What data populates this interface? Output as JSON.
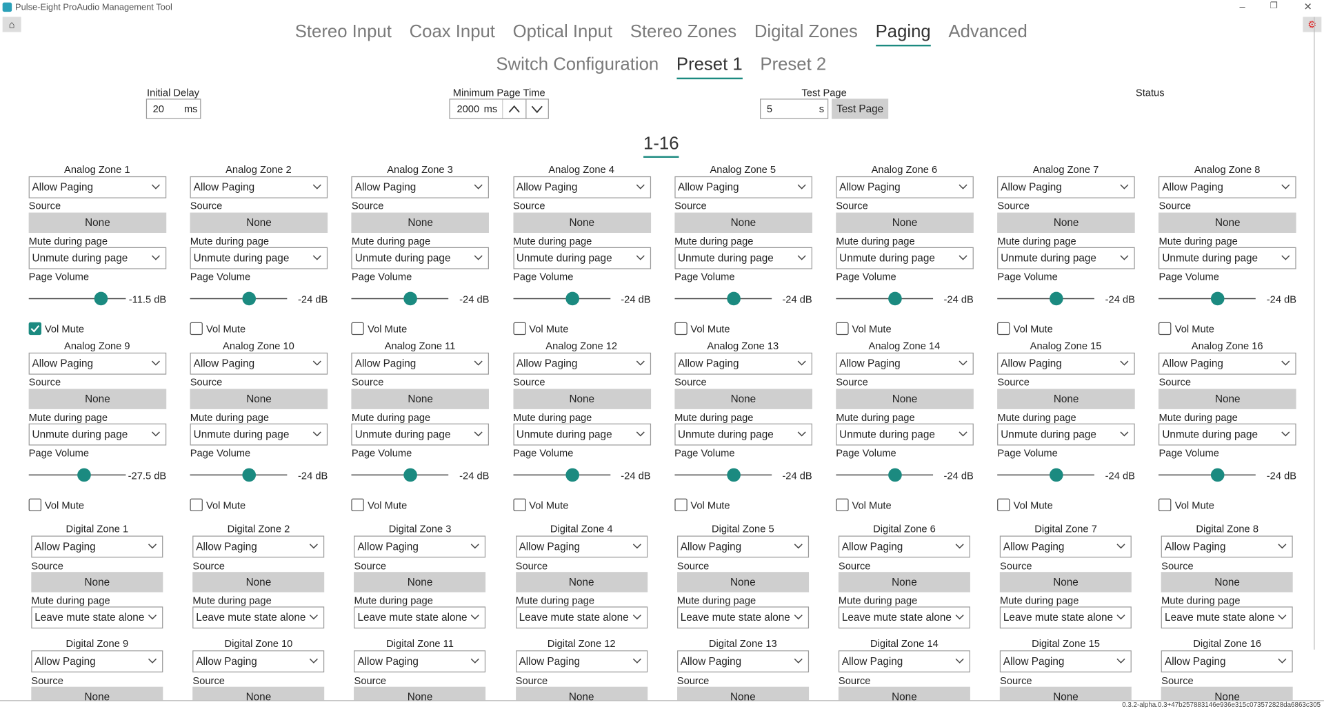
{
  "window": {
    "title": "Pulse-Eight ProAudio Management Tool"
  },
  "tabs": [
    "Stereo Input",
    "Coax Input",
    "Optical Input",
    "Stereo Zones",
    "Digital Zones",
    "Paging",
    "Advanced"
  ],
  "active_tab": 5,
  "subtabs": [
    "Switch Configuration",
    "Preset 1",
    "Preset 2"
  ],
  "active_subtab": 1,
  "settings": {
    "initial_delay": {
      "label": "Initial Delay",
      "value": "20",
      "unit": "ms"
    },
    "minimum_page_time": {
      "label": "Minimum Page Time",
      "value": "2000",
      "unit": "ms"
    },
    "test_page": {
      "label": "Test Page",
      "value": "5",
      "unit": "s",
      "button": "Test Page"
    },
    "status": {
      "label": "Status"
    }
  },
  "section": "1-16",
  "zone_labels": {
    "source": "Source",
    "mute": "Mute during page",
    "volume": "Page Volume",
    "vol_mute": "Vol Mute"
  },
  "volume_range": [
    -80,
    12
  ],
  "analog_zones": [
    {
      "name": "Analog Zone 1",
      "paging": "Allow Paging",
      "source": "None",
      "mute": "Unmute during page",
      "volume": -11.5,
      "volume_label": "-11.5 dB",
      "vol_mute": true
    },
    {
      "name": "Analog Zone 2",
      "paging": "Allow Paging",
      "source": "None",
      "mute": "Unmute during page",
      "volume": -24,
      "volume_label": "-24 dB",
      "vol_mute": false
    },
    {
      "name": "Analog Zone 3",
      "paging": "Allow Paging",
      "source": "None",
      "mute": "Unmute during page",
      "volume": -24,
      "volume_label": "-24 dB",
      "vol_mute": false
    },
    {
      "name": "Analog Zone 4",
      "paging": "Allow Paging",
      "source": "None",
      "mute": "Unmute during page",
      "volume": -24,
      "volume_label": "-24 dB",
      "vol_mute": false
    },
    {
      "name": "Analog Zone 5",
      "paging": "Allow Paging",
      "source": "None",
      "mute": "Unmute during page",
      "volume": -24,
      "volume_label": "-24 dB",
      "vol_mute": false
    },
    {
      "name": "Analog Zone 6",
      "paging": "Allow Paging",
      "source": "None",
      "mute": "Unmute during page",
      "volume": -24,
      "volume_label": "-24 dB",
      "vol_mute": false
    },
    {
      "name": "Analog Zone 7",
      "paging": "Allow Paging",
      "source": "None",
      "mute": "Unmute during page",
      "volume": -24,
      "volume_label": "-24 dB",
      "vol_mute": false
    },
    {
      "name": "Analog Zone 8",
      "paging": "Allow Paging",
      "source": "None",
      "mute": "Unmute during page",
      "volume": -24,
      "volume_label": "-24 dB",
      "vol_mute": false
    },
    {
      "name": "Analog Zone 9",
      "paging": "Allow Paging",
      "source": "None",
      "mute": "Unmute during page",
      "volume": -27.5,
      "volume_label": "-27.5 dB",
      "vol_mute": false
    },
    {
      "name": "Analog Zone 10",
      "paging": "Allow Paging",
      "source": "None",
      "mute": "Unmute during page",
      "volume": -24,
      "volume_label": "-24 dB",
      "vol_mute": false
    },
    {
      "name": "Analog Zone 11",
      "paging": "Allow Paging",
      "source": "None",
      "mute": "Unmute during page",
      "volume": -24,
      "volume_label": "-24 dB",
      "vol_mute": false
    },
    {
      "name": "Analog Zone 12",
      "paging": "Allow Paging",
      "source": "None",
      "mute": "Unmute during page",
      "volume": -24,
      "volume_label": "-24 dB",
      "vol_mute": false
    },
    {
      "name": "Analog Zone 13",
      "paging": "Allow Paging",
      "source": "None",
      "mute": "Unmute during page",
      "volume": -24,
      "volume_label": "-24 dB",
      "vol_mute": false
    },
    {
      "name": "Analog Zone 14",
      "paging": "Allow Paging",
      "source": "None",
      "mute": "Unmute during page",
      "volume": -24,
      "volume_label": "-24 dB",
      "vol_mute": false
    },
    {
      "name": "Analog Zone 15",
      "paging": "Allow Paging",
      "source": "None",
      "mute": "Unmute during page",
      "volume": -24,
      "volume_label": "-24 dB",
      "vol_mute": false
    },
    {
      "name": "Analog Zone 16",
      "paging": "Allow Paging",
      "source": "None",
      "mute": "Unmute during page",
      "volume": -24,
      "volume_label": "-24 dB",
      "vol_mute": false
    }
  ],
  "digital_zones": [
    {
      "name": "Digital Zone 1",
      "paging": "Allow Paging",
      "source": "None",
      "mute": "Leave mute state alone"
    },
    {
      "name": "Digital Zone 2",
      "paging": "Allow Paging",
      "source": "None",
      "mute": "Leave mute state alone"
    },
    {
      "name": "Digital Zone 3",
      "paging": "Allow Paging",
      "source": "None",
      "mute": "Leave mute state alone"
    },
    {
      "name": "Digital Zone 4",
      "paging": "Allow Paging",
      "source": "None",
      "mute": "Leave mute state alone"
    },
    {
      "name": "Digital Zone 5",
      "paging": "Allow Paging",
      "source": "None",
      "mute": "Leave mute state alone"
    },
    {
      "name": "Digital Zone 6",
      "paging": "Allow Paging",
      "source": "None",
      "mute": "Leave mute state alone"
    },
    {
      "name": "Digital Zone 7",
      "paging": "Allow Paging",
      "source": "None",
      "mute": "Leave mute state alone"
    },
    {
      "name": "Digital Zone 8",
      "paging": "Allow Paging",
      "source": "None",
      "mute": "Leave mute state alone"
    },
    {
      "name": "Digital Zone 9",
      "paging": "Allow Paging",
      "source": "None"
    },
    {
      "name": "Digital Zone 10",
      "paging": "Allow Paging",
      "source": "None"
    },
    {
      "name": "Digital Zone 11",
      "paging": "Allow Paging",
      "source": "None"
    },
    {
      "name": "Digital Zone 12",
      "paging": "Allow Paging",
      "source": "None"
    },
    {
      "name": "Digital Zone 13",
      "paging": "Allow Paging",
      "source": "None"
    },
    {
      "name": "Digital Zone 14",
      "paging": "Allow Paging",
      "source": "None"
    },
    {
      "name": "Digital Zone 15",
      "paging": "Allow Paging",
      "source": "None"
    },
    {
      "name": "Digital Zone 16",
      "paging": "Allow Paging",
      "source": "None"
    }
  ],
  "version": "0.3.2-alpha.0.3+47b257883146e936e315c073572828da6863c305"
}
